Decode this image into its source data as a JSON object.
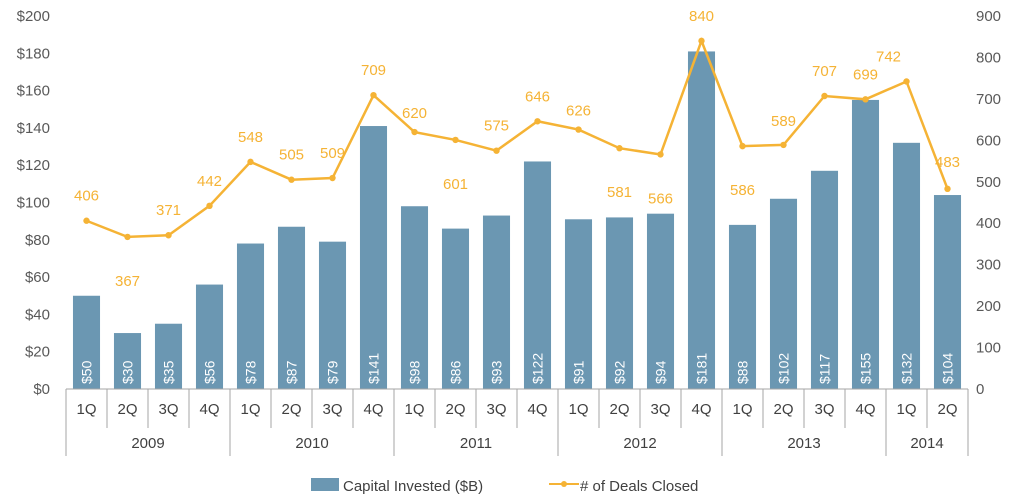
{
  "chart_data": {
    "type": "bar",
    "quarters": [
      "1Q",
      "2Q",
      "3Q",
      "4Q",
      "1Q",
      "2Q",
      "3Q",
      "4Q",
      "1Q",
      "2Q",
      "3Q",
      "4Q",
      "1Q",
      "2Q",
      "3Q",
      "4Q",
      "1Q",
      "2Q",
      "3Q",
      "4Q",
      "1Q",
      "2Q"
    ],
    "years": [
      {
        "label": "2009",
        "count": 4
      },
      {
        "label": "2010",
        "count": 4
      },
      {
        "label": "2011",
        "count": 4
      },
      {
        "label": "2012",
        "count": 4
      },
      {
        "label": "2013",
        "count": 4
      },
      {
        "label": "2014",
        "count": 2
      }
    ],
    "series": [
      {
        "name": "Capital Invested ($B)",
        "type": "bar",
        "axis": "left",
        "color": "#6b97b2",
        "values": [
          50,
          30,
          35,
          56,
          78,
          87,
          79,
          141,
          98,
          86,
          93,
          122,
          91,
          92,
          94,
          181,
          88,
          102,
          117,
          155,
          132,
          104
        ],
        "labels": [
          "$50",
          "$30",
          "$35",
          "$56",
          "$78",
          "$87",
          "$79",
          "$141",
          "$98",
          "$86",
          "$93",
          "$122",
          "$91",
          "$92",
          "$94",
          "$181",
          "$88",
          "$102",
          "$117",
          "$155",
          "$132",
          "$104"
        ]
      },
      {
        "name": "# of Deals Closed",
        "type": "line",
        "axis": "right",
        "color": "#f5b335",
        "values": [
          406,
          367,
          371,
          442,
          548,
          505,
          509,
          709,
          620,
          601,
          575,
          646,
          626,
          581,
          566,
          840,
          586,
          589,
          707,
          699,
          742,
          483
        ]
      }
    ],
    "left_axis": {
      "min": 0,
      "max": 200,
      "step": 20,
      "ticks": [
        "$0",
        "$20",
        "$40",
        "$60",
        "$80",
        "$100",
        "$120",
        "$140",
        "$160",
        "$180",
        "$200"
      ]
    },
    "right_axis": {
      "min": 0,
      "max": 900,
      "step": 100,
      "ticks": [
        "0",
        "100",
        "200",
        "300",
        "400",
        "500",
        "600",
        "700",
        "800",
        "900"
      ]
    },
    "grid": false,
    "legend_position": "bottom"
  }
}
